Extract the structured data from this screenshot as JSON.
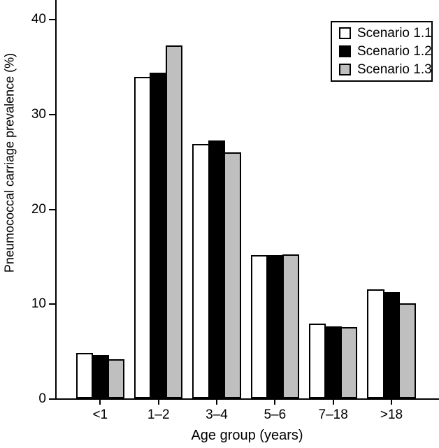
{
  "chart_data": {
    "type": "bar",
    "title": "",
    "xlabel": "Age group (years)",
    "ylabel": "Pneumococcal carriage prevalence (%)",
    "categories": [
      "<1",
      "1–2",
      "3–4",
      "5–6",
      "7–18",
      ">18"
    ],
    "series": [
      {
        "name": "Scenario 1.1",
        "color": "#ffffff",
        "values": [
          4.8,
          33.9,
          26.8,
          15.1,
          7.9,
          11.5
        ]
      },
      {
        "name": "Scenario 1.2",
        "color": "#000000",
        "values": [
          4.6,
          34.3,
          27.2,
          15.1,
          7.6,
          11.2
        ]
      },
      {
        "name": "Scenario 1.3",
        "color": "#bfbfbf",
        "values": [
          4.1,
          37.2,
          25.9,
          15.2,
          7.5,
          10.0
        ]
      }
    ],
    "y_ticks": [
      0,
      10,
      20,
      30,
      40
    ],
    "ylim": [
      0,
      42
    ],
    "grid": false,
    "legend_position": "top-right",
    "axis_color": "#000000",
    "bar_outline_color": "#000000"
  }
}
